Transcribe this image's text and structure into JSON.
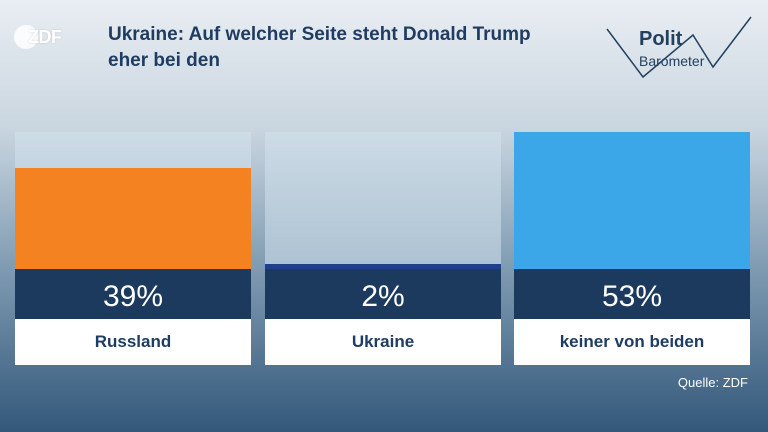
{
  "header": {
    "logo_text": "ZDF",
    "title": "Ukraine: Auf welcher Seite steht Donald Trump eher bei den",
    "brand_line1": "Polit",
    "brand_line2": "Barometer"
  },
  "footer": {
    "source": "Quelle: ZDF"
  },
  "colors": {
    "russland": "#f58220",
    "ukraine": "#1e3f8c",
    "keiner": "#3ca7e8",
    "title": "#1f3c63"
  },
  "chart_data": {
    "type": "bar",
    "title": "Ukraine: Auf welcher Seite steht Donald Trump eher bei den",
    "categories": [
      "Russland",
      "Ukraine",
      "keiner von beiden"
    ],
    "values": [
      39,
      2,
      53
    ],
    "value_labels": [
      "39%",
      "2%",
      "53%"
    ],
    "ylim": [
      0,
      53
    ],
    "colors": [
      "#f58220",
      "#1e3f8c",
      "#3ca7e8"
    ],
    "grid": false,
    "legend": "none"
  }
}
